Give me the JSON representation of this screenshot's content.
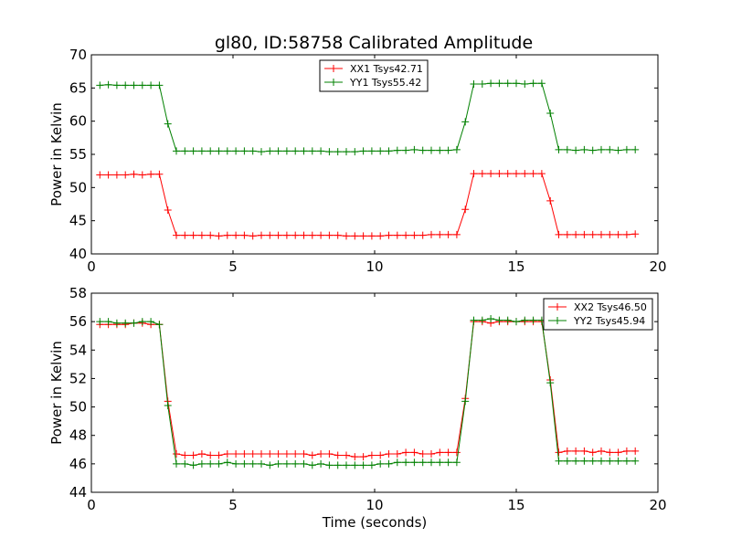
{
  "figure_title": "gl80, ID:58758 Calibrated Amplitude",
  "chart_data": [
    {
      "type": "line",
      "title": "gl80, ID:58758 Calibrated Amplitude",
      "xlabel": "",
      "ylabel": "Power in Kelvin",
      "xlim": [
        0,
        20
      ],
      "ylim": [
        40,
        70
      ],
      "xticks": [
        "0",
        "5",
        "10",
        "15",
        "20"
      ],
      "yticks": [
        "40",
        "45",
        "50",
        "55",
        "60",
        "65",
        "70"
      ],
      "grid": false,
      "legend_position": "top-center",
      "x": [
        0.3,
        0.6,
        0.9,
        1.2,
        1.5,
        1.8,
        2.1,
        2.4,
        2.7,
        3.0,
        3.3,
        3.6,
        3.9,
        4.2,
        4.5,
        4.8,
        5.1,
        5.4,
        5.7,
        6.0,
        6.3,
        6.6,
        6.9,
        7.2,
        7.5,
        7.8,
        8.1,
        8.4,
        8.7,
        9.0,
        9.3,
        9.6,
        9.9,
        10.2,
        10.5,
        10.8,
        11.1,
        11.4,
        11.7,
        12.0,
        12.3,
        12.6,
        12.9,
        13.2,
        13.5,
        13.8,
        14.1,
        14.4,
        14.7,
        15.0,
        15.3,
        15.6,
        15.9,
        16.2,
        16.5,
        16.8,
        17.1,
        17.4,
        17.7,
        18.0,
        18.3,
        18.6,
        18.9,
        19.2
      ],
      "series": [
        {
          "name": "XX1 Tsys42.71",
          "color": "#ff0000",
          "values": [
            51.9,
            51.9,
            51.9,
            51.9,
            52.0,
            51.9,
            52.0,
            52.0,
            46.6,
            42.8,
            42.8,
            42.8,
            42.8,
            42.8,
            42.7,
            42.8,
            42.8,
            42.8,
            42.7,
            42.8,
            42.8,
            42.8,
            42.8,
            42.8,
            42.8,
            42.8,
            42.8,
            42.8,
            42.8,
            42.7,
            42.7,
            42.7,
            42.7,
            42.7,
            42.8,
            42.8,
            42.8,
            42.8,
            42.8,
            42.9,
            42.9,
            42.9,
            42.9,
            46.7,
            52.1,
            52.1,
            52.1,
            52.1,
            52.1,
            52.1,
            52.1,
            52.1,
            52.1,
            48.0,
            42.9,
            42.9,
            42.9,
            42.9,
            42.9,
            42.9,
            42.9,
            42.9,
            42.9,
            43.0
          ]
        },
        {
          "name": "YY1 Tsys55.42",
          "color": "#008000",
          "values": [
            65.4,
            65.5,
            65.4,
            65.4,
            65.4,
            65.4,
            65.4,
            65.4,
            59.6,
            55.5,
            55.5,
            55.5,
            55.5,
            55.5,
            55.5,
            55.5,
            55.5,
            55.5,
            55.5,
            55.4,
            55.5,
            55.5,
            55.5,
            55.5,
            55.5,
            55.5,
            55.5,
            55.4,
            55.4,
            55.4,
            55.4,
            55.5,
            55.5,
            55.5,
            55.5,
            55.6,
            55.6,
            55.7,
            55.6,
            55.6,
            55.6,
            55.6,
            55.7,
            59.9,
            65.6,
            65.6,
            65.7,
            65.7,
            65.7,
            65.7,
            65.6,
            65.7,
            65.7,
            61.2,
            55.7,
            55.7,
            55.6,
            55.7,
            55.6,
            55.7,
            55.7,
            55.6,
            55.7,
            55.7
          ]
        }
      ]
    },
    {
      "type": "line",
      "title": "",
      "xlabel": "Time (seconds)",
      "ylabel": "Power in Kelvin",
      "xlim": [
        0,
        20
      ],
      "ylim": [
        44,
        58
      ],
      "xticks": [
        "0",
        "5",
        "10",
        "15",
        "20"
      ],
      "yticks": [
        "44",
        "46",
        "48",
        "50",
        "52",
        "54",
        "56",
        "58"
      ],
      "grid": false,
      "legend_position": "top-right",
      "x": [
        0.3,
        0.6,
        0.9,
        1.2,
        1.5,
        1.8,
        2.1,
        2.4,
        2.7,
        3.0,
        3.3,
        3.6,
        3.9,
        4.2,
        4.5,
        4.8,
        5.1,
        5.4,
        5.7,
        6.0,
        6.3,
        6.6,
        6.9,
        7.2,
        7.5,
        7.8,
        8.1,
        8.4,
        8.7,
        9.0,
        9.3,
        9.6,
        9.9,
        10.2,
        10.5,
        10.8,
        11.1,
        11.4,
        11.7,
        12.0,
        12.3,
        12.6,
        12.9,
        13.2,
        13.5,
        13.8,
        14.1,
        14.4,
        14.7,
        15.0,
        15.3,
        15.6,
        15.9,
        16.2,
        16.5,
        16.8,
        17.1,
        17.4,
        17.7,
        18.0,
        18.3,
        18.6,
        18.9,
        19.2
      ],
      "series": [
        {
          "name": "XX2 Tsys46.50",
          "color": "#ff0000",
          "values": [
            55.8,
            55.8,
            55.8,
            55.8,
            55.9,
            55.9,
            55.8,
            55.8,
            50.4,
            46.7,
            46.6,
            46.6,
            46.7,
            46.6,
            46.6,
            46.7,
            46.7,
            46.7,
            46.7,
            46.7,
            46.7,
            46.7,
            46.7,
            46.7,
            46.7,
            46.6,
            46.7,
            46.7,
            46.6,
            46.6,
            46.5,
            46.5,
            46.6,
            46.6,
            46.7,
            46.7,
            46.8,
            46.8,
            46.7,
            46.7,
            46.8,
            46.8,
            46.8,
            50.6,
            56.0,
            56.0,
            55.9,
            56.0,
            56.0,
            56.0,
            56.0,
            56.0,
            56.0,
            51.9,
            46.8,
            46.9,
            46.9,
            46.9,
            46.8,
            46.9,
            46.8,
            46.8,
            46.9,
            46.9
          ]
        },
        {
          "name": "YY2 Tsys45.94",
          "color": "#008000",
          "values": [
            56.0,
            56.0,
            55.9,
            55.9,
            55.9,
            56.0,
            56.0,
            55.8,
            50.1,
            46.0,
            46.0,
            45.9,
            46.0,
            46.0,
            46.0,
            46.1,
            46.0,
            46.0,
            46.0,
            46.0,
            45.9,
            46.0,
            46.0,
            46.0,
            46.0,
            45.9,
            46.0,
            45.9,
            45.9,
            45.9,
            45.9,
            45.9,
            45.9,
            46.0,
            46.0,
            46.1,
            46.1,
            46.1,
            46.1,
            46.1,
            46.1,
            46.1,
            46.1,
            50.4,
            56.1,
            56.1,
            56.2,
            56.1,
            56.1,
            56.0,
            56.1,
            56.1,
            56.1,
            51.7,
            46.2,
            46.2,
            46.2,
            46.2,
            46.2,
            46.2,
            46.2,
            46.2,
            46.2,
            46.2
          ]
        }
      ]
    }
  ]
}
